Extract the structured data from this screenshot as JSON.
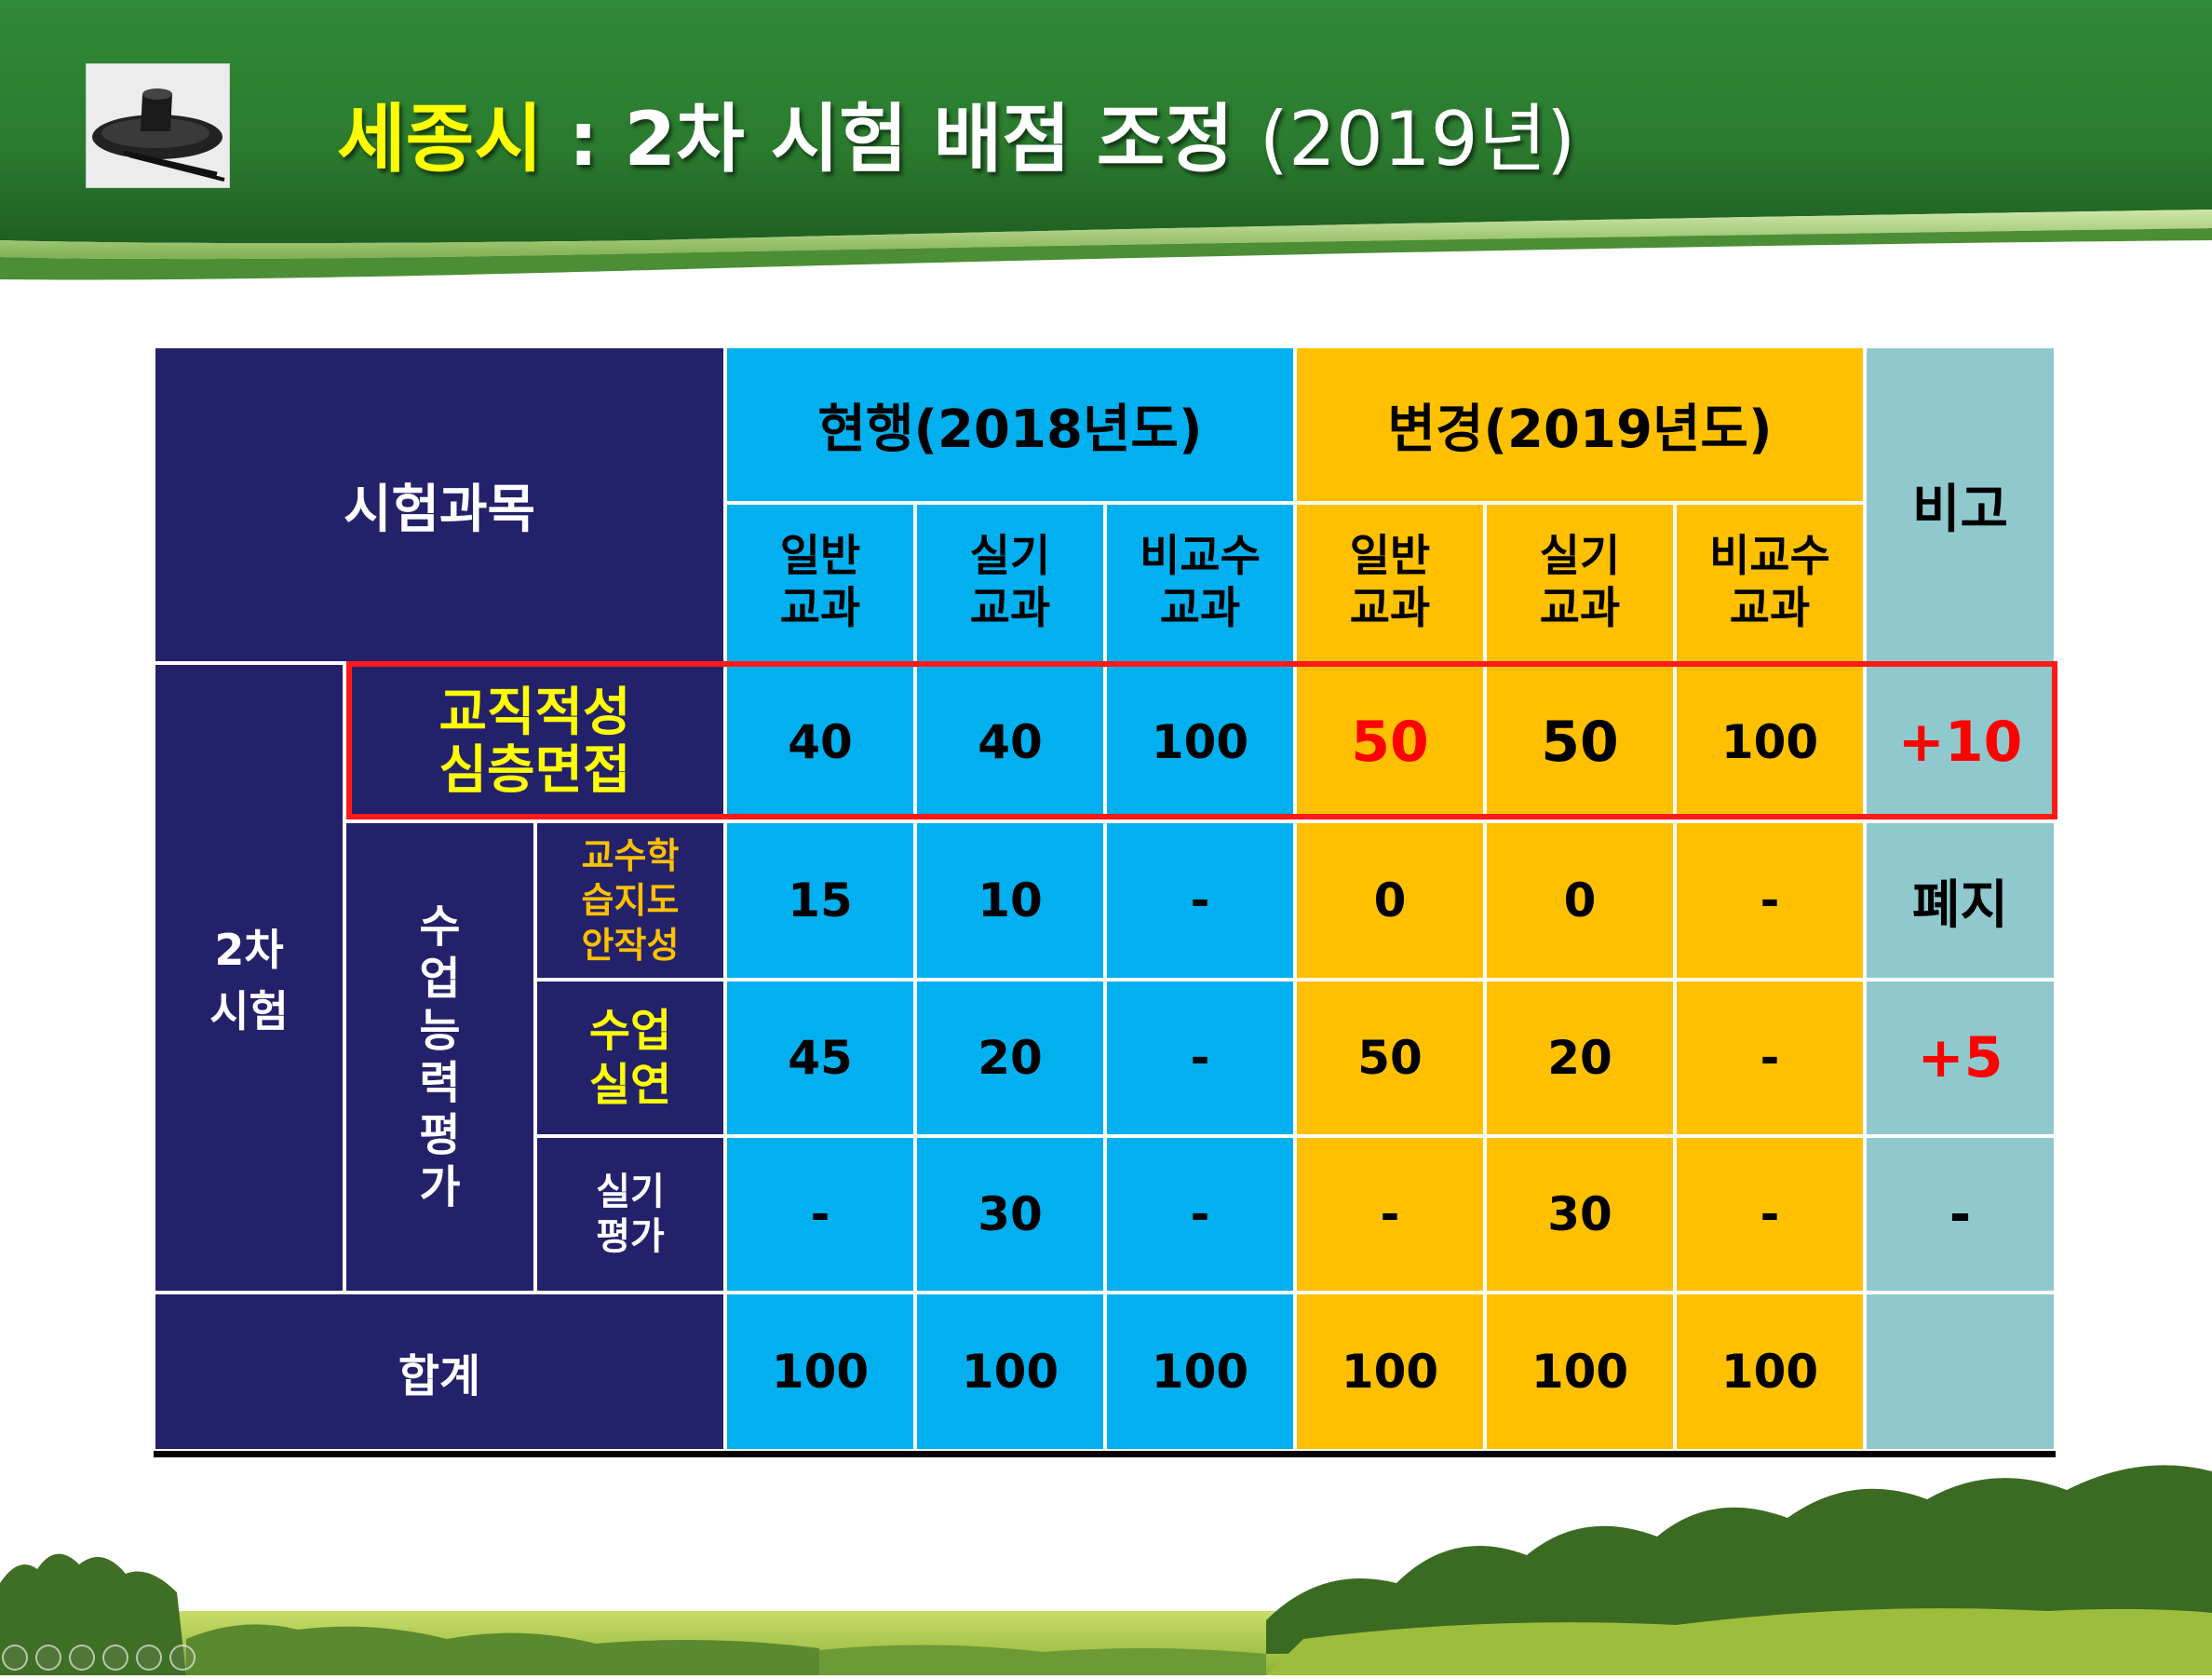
{
  "title": {
    "highlight": "세종시",
    "rest": " : 2차 시험 배점 조정 ",
    "year": "(2019년)"
  },
  "table": {
    "subject_header": "시험과목",
    "current_header": "현행(2018년도)",
    "changed_header": "변경(2019년도)",
    "remark_header": "비고",
    "col_labels": [
      "일반\n교과",
      "실기\n교과",
      "비교수\n교과",
      "일반\n교과",
      "실기\n교과",
      "비교수\n교과"
    ],
    "stage_label": "2차\n시험",
    "group_label": "수\n업\n능\n력\n평\n가",
    "rows": [
      {
        "label": "교직적성\n심층면접",
        "values": [
          "40",
          "40",
          "100",
          "50",
          "50",
          "100"
        ],
        "remark": "+10"
      },
      {
        "label": "교수학\n습지도\n안작성",
        "values": [
          "15",
          "10",
          "-",
          "0",
          "0",
          "-"
        ],
        "remark": "폐지"
      },
      {
        "label": "수업\n실연",
        "values": [
          "45",
          "20",
          "-",
          "50",
          "20",
          "-"
        ],
        "remark": "+5"
      },
      {
        "label": "실기\n평가",
        "values": [
          "-",
          "30",
          "-",
          "-",
          "30",
          "-"
        ],
        "remark": "-"
      }
    ],
    "total_label": "합계",
    "total_values": [
      "100",
      "100",
      "100",
      "100",
      "100",
      "100"
    ],
    "total_remark": ""
  },
  "colors": {
    "navy": "#24216b",
    "blue": "#02b0ef",
    "gold": "#fec000",
    "teal": "#8fc9ce",
    "highlight_box": "#ff1a1a",
    "header_green": "#2e7d32"
  },
  "icons": [
    "traditional-hat-icon"
  ]
}
